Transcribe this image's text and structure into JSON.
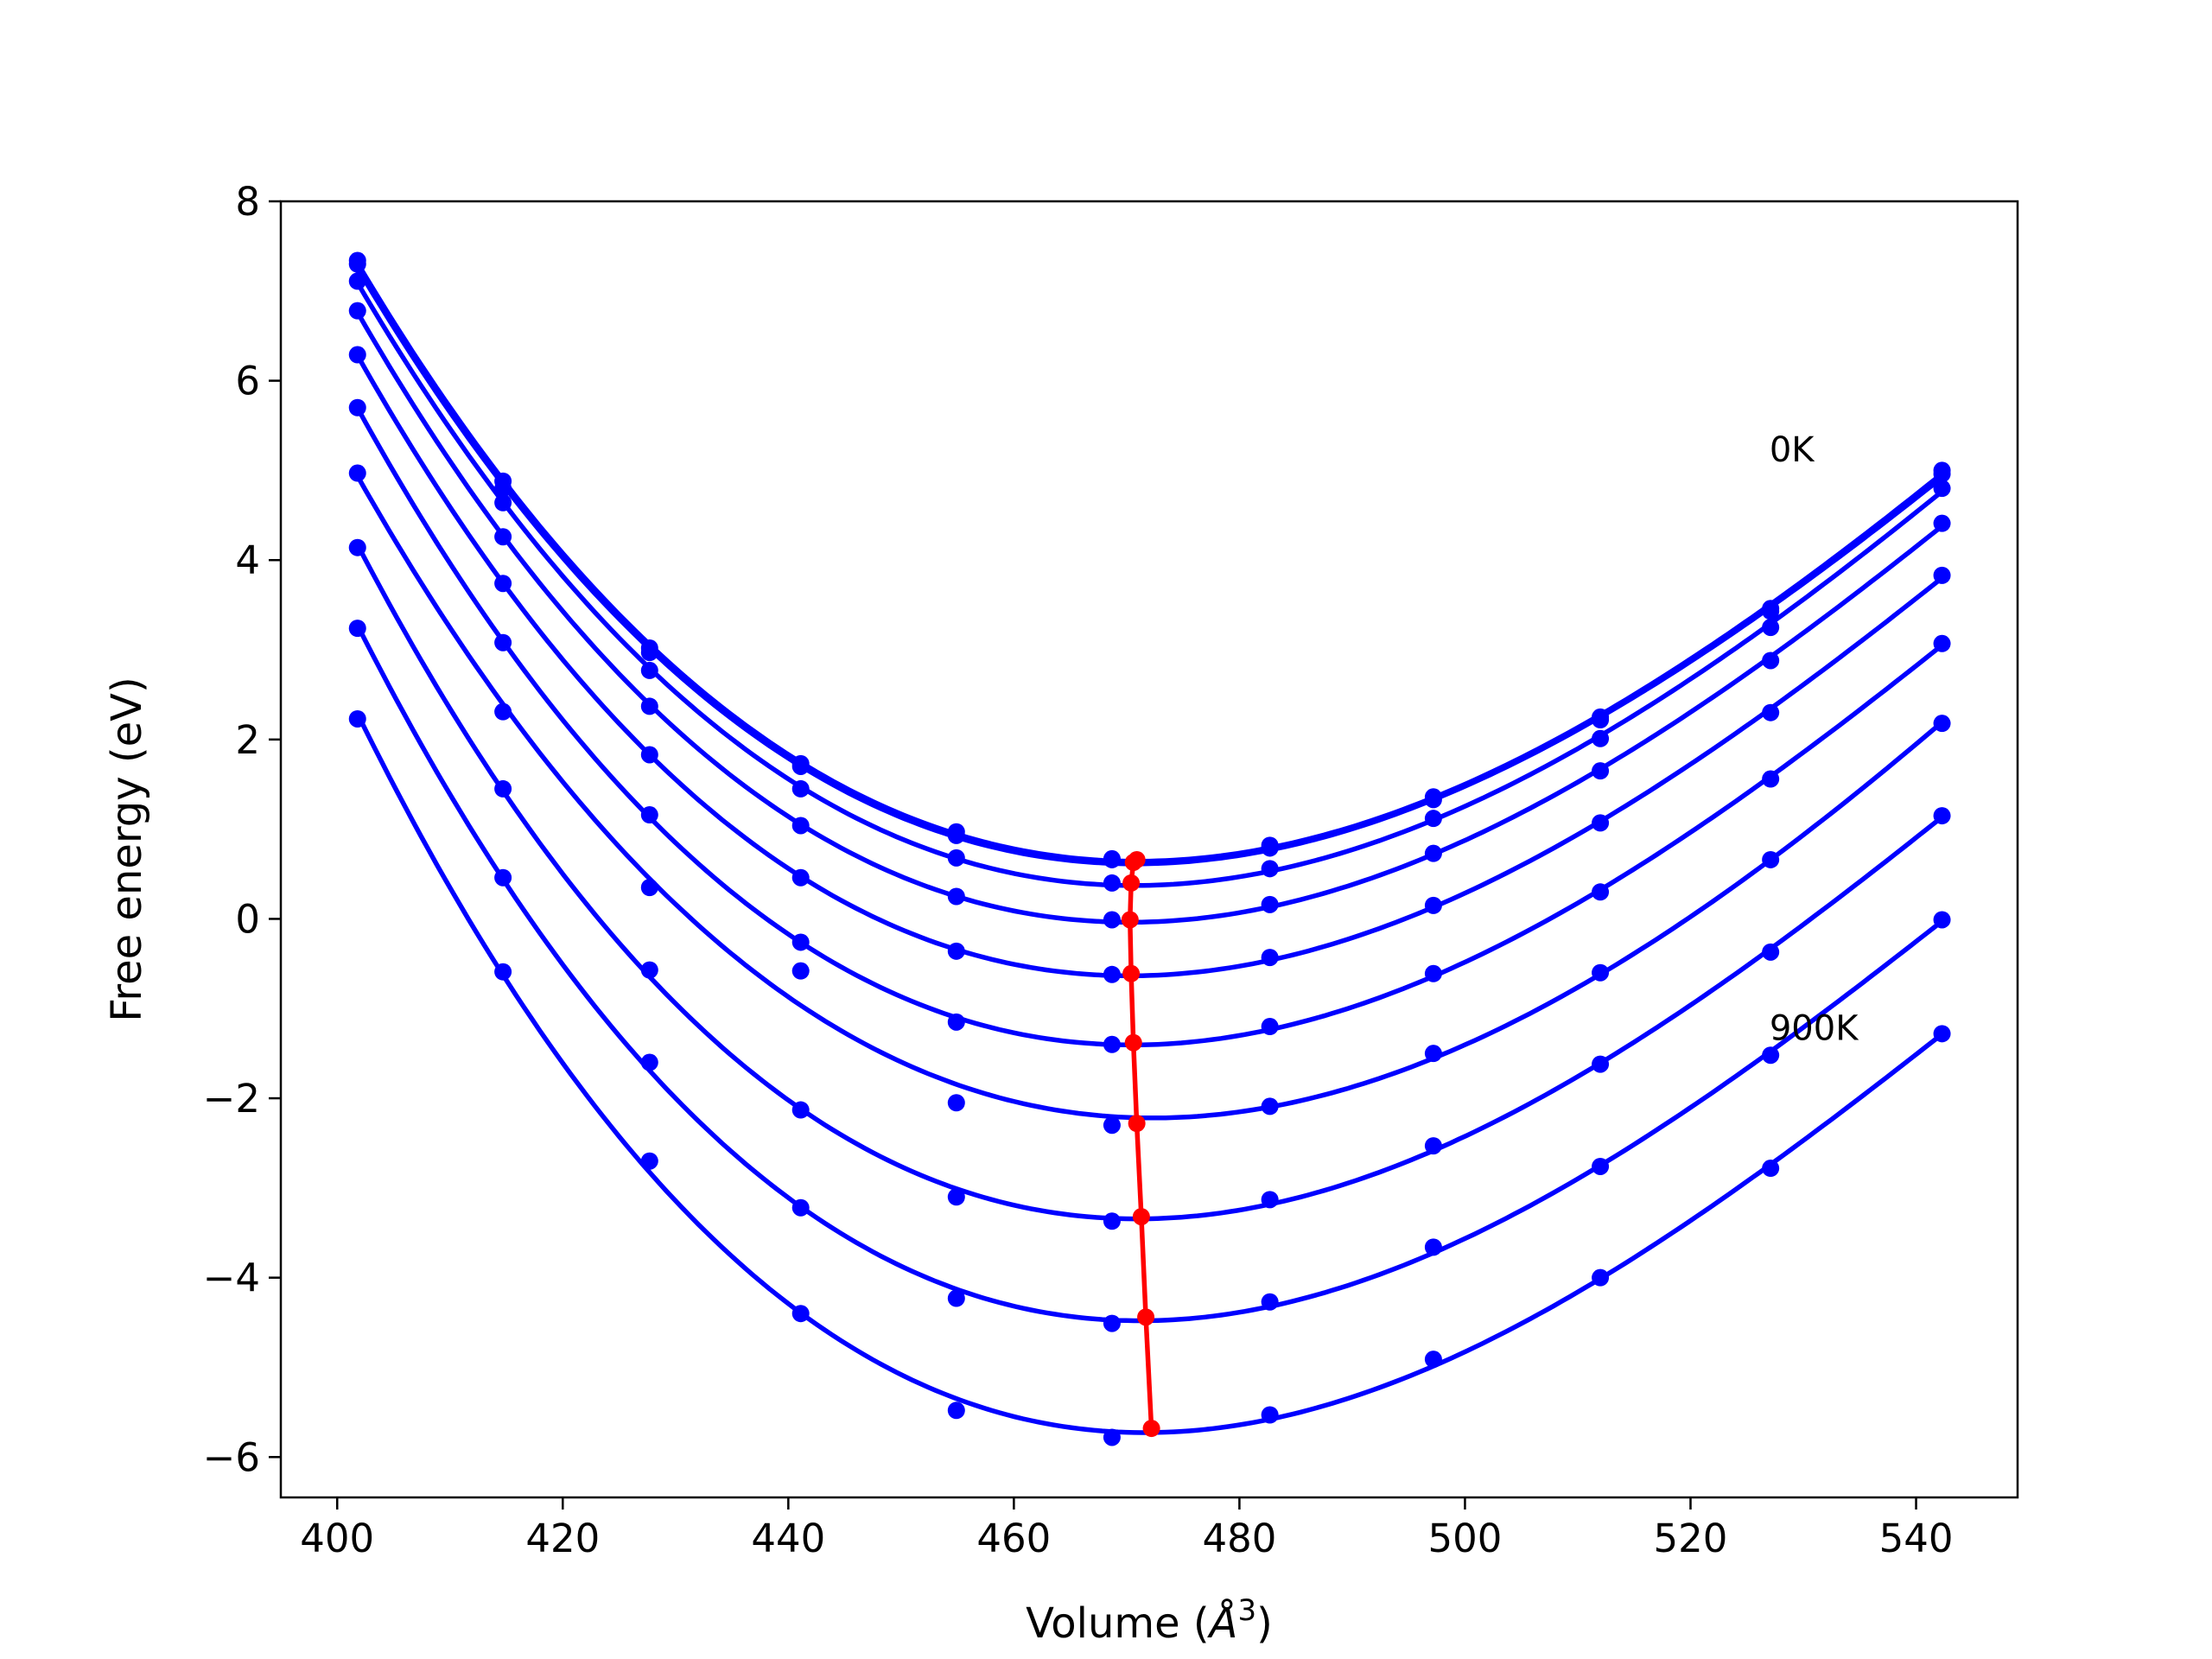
{
  "chart_data": {
    "type": "line",
    "title": "",
    "xlabel": "Volume (Å³)",
    "xlabel_prefix": "Volume (",
    "xlabel_symbol": "Å",
    "xlabel_superscript": "3",
    "xlabel_suffix": ")",
    "ylabel": "Free energy (eV)",
    "xlim": [
      395,
      549
    ],
    "ylim": [
      -6.45,
      8.0
    ],
    "xticks": [
      400,
      420,
      440,
      460,
      480,
      500,
      520,
      540
    ],
    "xtick_labels": [
      "400",
      "420",
      "440",
      "460",
      "480",
      "500",
      "520",
      "540"
    ],
    "yticks": [
      -6,
      -4,
      -2,
      0,
      2,
      4,
      6,
      8
    ],
    "ytick_labels": [
      "−6",
      "−4",
      "−2",
      "0",
      "2",
      "4",
      "6",
      "8"
    ],
    "grid": false,
    "colors": {
      "curves": "#0000ff",
      "minima": "#ff0000",
      "frame": "#000000"
    },
    "volumes": [
      401.8,
      414.7,
      427.7,
      441.1,
      454.9,
      468.7,
      482.7,
      497.2,
      512.0,
      527.1,
      542.3
    ],
    "series": [
      {
        "energies": [
          7.34,
          4.88,
          3.02,
          1.73,
          0.97,
          0.67,
          0.82,
          1.36,
          2.25,
          3.46,
          5.0
        ]
      },
      {
        "energies": [
          7.3,
          4.8,
          2.97,
          1.7,
          0.93,
          0.66,
          0.79,
          1.33,
          2.22,
          3.43,
          4.96
        ]
      },
      {
        "energies": [
          7.11,
          4.64,
          2.77,
          1.45,
          0.68,
          0.4,
          0.56,
          1.12,
          2.01,
          3.25,
          4.8
        ]
      },
      {
        "energies": [
          6.78,
          4.26,
          2.37,
          1.04,
          0.25,
          -0.01,
          0.16,
          0.73,
          1.65,
          2.88,
          4.41
        ]
      },
      {
        "energies": [
          6.29,
          3.74,
          1.83,
          0.46,
          -0.36,
          -0.62,
          -0.43,
          0.15,
          1.07,
          2.3,
          3.83
        ]
      },
      {
        "energies": [
          5.7,
          3.08,
          1.16,
          -0.26,
          -1.15,
          -1.4,
          -1.2,
          -0.61,
          0.3,
          1.56,
          3.07
        ]
      },
      {
        "energies": [
          4.97,
          2.31,
          0.35,
          -0.58,
          -2.05,
          -2.3,
          -2.09,
          -1.5,
          -0.6,
          0.66,
          2.18
        ]
      },
      {
        "energies": [
          4.14,
          1.45,
          -0.57,
          -2.13,
          -3.1,
          -3.37,
          -3.13,
          -2.53,
          -1.62,
          -0.37,
          1.15
        ]
      },
      {
        "energies": [
          3.24,
          0.46,
          -1.6,
          -3.22,
          -4.23,
          -4.51,
          -4.27,
          -3.66,
          -2.76,
          -1.52,
          -0.01
        ]
      },
      {
        "energies": [
          2.23,
          -0.59,
          -2.7,
          -4.4,
          -5.48,
          -5.78,
          -5.53,
          -4.91,
          -4.0,
          -2.78,
          -1.28
        ]
      }
    ],
    "minima": {
      "volumes": [
        470.9,
        470.6,
        470.4,
        470.3,
        470.4,
        470.6,
        470.9,
        471.3,
        471.7,
        472.2
      ],
      "energies": [
        0.66,
        0.63,
        0.4,
        -0.01,
        -0.61,
        -1.38,
        -2.28,
        -3.32,
        -4.44,
        -5.68
      ]
    },
    "annotations": [
      {
        "text": "0K",
        "x": 527.0,
        "y": 5.1
      },
      {
        "text": "900K",
        "x": 527.0,
        "y": -1.35
      }
    ]
  }
}
